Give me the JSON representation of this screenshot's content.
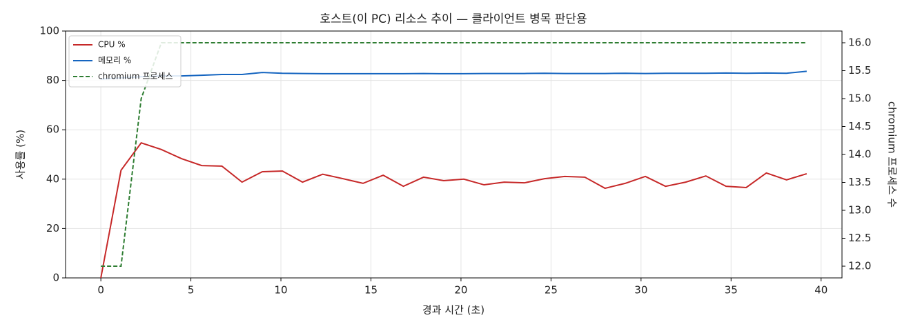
{
  "chart_data": {
    "type": "line",
    "title": "호스트(이 PC) 리소스 추이 — 클라이언트 병목 판단용",
    "xlabel": "경과 시간 (초)",
    "ylabel": "사용률 (%)",
    "y2label": "chromium 프로세스 수",
    "x": [
      0,
      1.12,
      2.24,
      3.36,
      4.48,
      5.6,
      6.72,
      7.84,
      8.96,
      10.08,
      11.2,
      12.32,
      13.44,
      14.56,
      15.68,
      16.8,
      17.92,
      19.04,
      20.16,
      21.28,
      22.4,
      23.52,
      24.64,
      25.76,
      26.88,
      28,
      29.12,
      30.24,
      31.36,
      32.48,
      33.6,
      34.72,
      35.84,
      36.96,
      38.08,
      39.2
    ],
    "series": [
      {
        "name": "CPU %",
        "color": "#c62828",
        "linestyle": "solid",
        "values": [
          0,
          43.6,
          54.7,
          52,
          48.3,
          45.5,
          45.3,
          38.8,
          43.0,
          43.3,
          38.8,
          42.0,
          40.2,
          38.3,
          41.6,
          37.1,
          40.8,
          39.4,
          40.0,
          37.7,
          38.8,
          38.5,
          40.2,
          41.1,
          40.8,
          36.3,
          38.3,
          41.1,
          37.1,
          38.8,
          41.3,
          37.1,
          36.6,
          42.5,
          39.7,
          42.2
        ]
      },
      {
        "name": "메모리 %",
        "color": "#1565c0",
        "linestyle": "solid",
        "values": [
          80.5,
          81.0,
          81.5,
          81.8,
          81.8,
          82.1,
          82.4,
          82.4,
          83.2,
          82.9,
          82.8,
          82.7,
          82.7,
          82.7,
          82.7,
          82.7,
          82.8,
          82.7,
          82.7,
          82.8,
          82.8,
          82.8,
          82.9,
          82.8,
          82.8,
          82.8,
          82.9,
          82.8,
          82.9,
          82.9,
          82.9,
          83.0,
          82.9,
          83.0,
          82.9,
          83.7
        ]
      },
      {
        "name": "chromium 프로세스",
        "color": "#2e7d32",
        "linestyle": "dashed",
        "axis": "y2",
        "values": [
          12,
          12,
          15,
          16,
          16,
          16,
          16,
          16,
          16,
          16,
          16,
          16,
          16,
          16,
          16,
          16,
          16,
          16,
          16,
          16,
          16,
          16,
          16,
          16,
          16,
          16,
          16,
          16,
          16,
          16,
          16,
          16,
          16,
          16,
          16,
          16
        ]
      }
    ],
    "xlim": [
      -1.96,
      41.16
    ],
    "xticks": [
      0,
      5,
      10,
      15,
      20,
      25,
      30,
      35,
      40
    ],
    "ylim": [
      0,
      100
    ],
    "yticks": [
      0,
      20,
      40,
      60,
      80,
      100
    ],
    "y2lim": [
      11.79,
      16.21
    ],
    "y2ticks": [
      {
        "value": 12,
        "label": "12.0"
      },
      12.5,
      {
        "value": 13,
        "label": "13.0"
      },
      13.5,
      {
        "value": 14,
        "label": "14.0"
      },
      14.5,
      {
        "value": 15,
        "label": "15.0"
      },
      15.5,
      {
        "value": 16,
        "label": "16.0"
      }
    ],
    "grid": true,
    "legend": "upper left"
  }
}
